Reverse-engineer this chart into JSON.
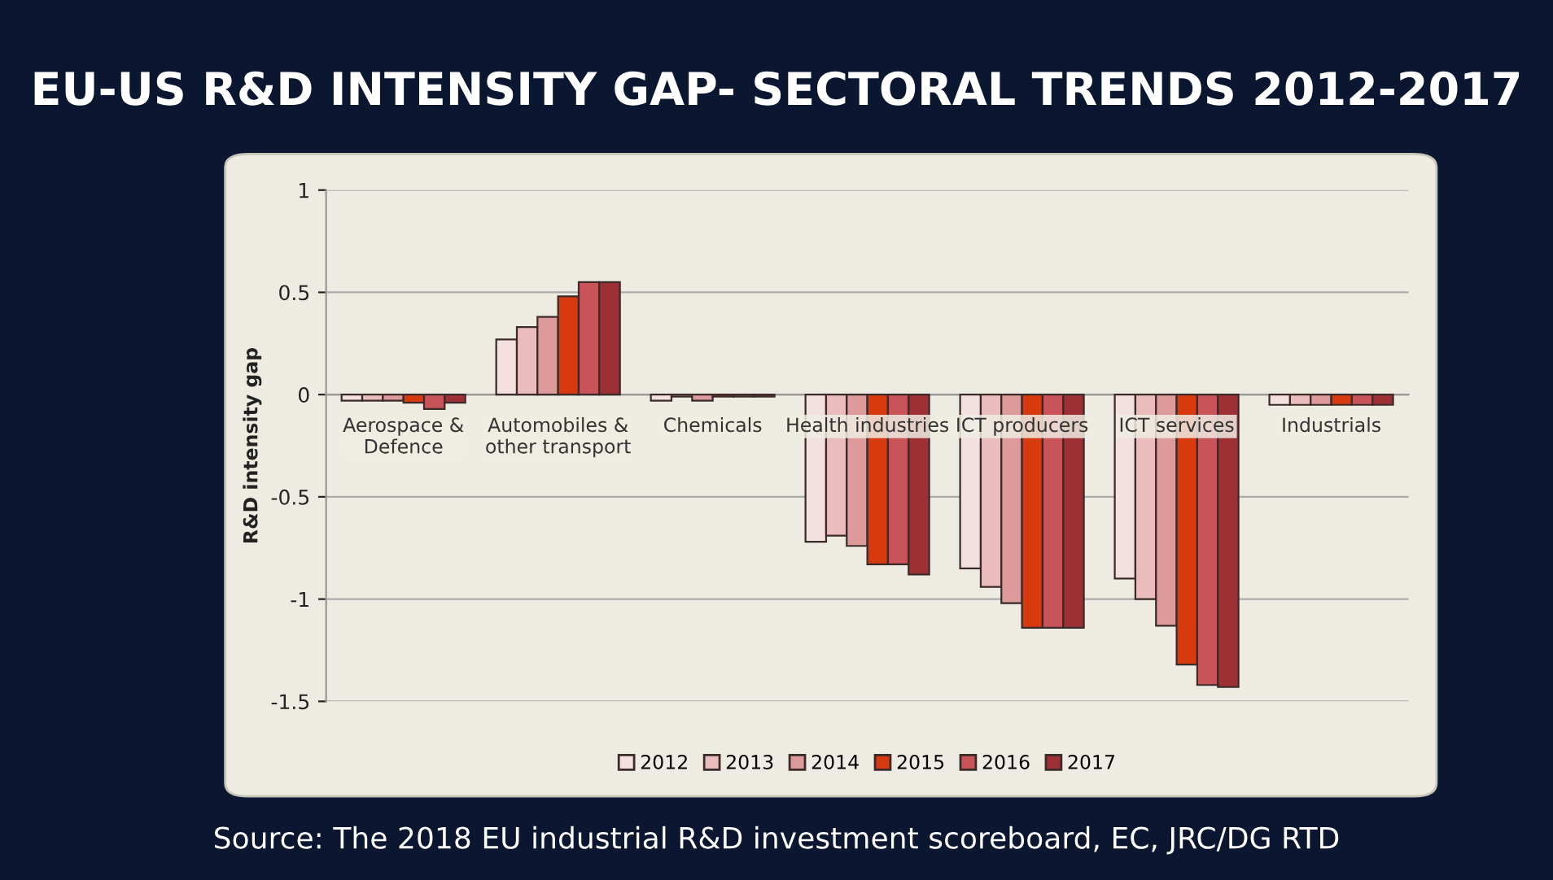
{
  "chart_data": {
    "type": "bar",
    "title": "EU-US R&D INTENSITY GAP- SECTORAL TRENDS 2012-2017",
    "ylabel": "R&D intensity gap",
    "categories": [
      "Aerospace & Defence",
      "Automobiles & other transport",
      "Chemicals",
      "Health industries",
      "ICT producers",
      "ICT services",
      "Industrials"
    ],
    "series": [
      {
        "name": "2012",
        "color": "#f5e0e0",
        "values": [
          -0.03,
          0.27,
          -0.03,
          -0.72,
          -0.85,
          -0.9,
          -0.05
        ]
      },
      {
        "name": "2013",
        "color": "#ebbcbc",
        "values": [
          -0.03,
          0.33,
          -0.01,
          -0.69,
          -0.94,
          -1.0,
          -0.05
        ]
      },
      {
        "name": "2014",
        "color": "#dd9a9a",
        "values": [
          -0.03,
          0.38,
          -0.03,
          -0.74,
          -1.02,
          -1.13,
          -0.05
        ]
      },
      {
        "name": "2015",
        "color": "#d83a10",
        "values": [
          -0.04,
          0.48,
          -0.01,
          -0.83,
          -1.14,
          -1.32,
          -0.05
        ]
      },
      {
        "name": "2016",
        "color": "#c8545a",
        "values": [
          -0.07,
          0.55,
          -0.01,
          -0.83,
          -1.14,
          -1.42,
          -0.05
        ]
      },
      {
        "name": "2017",
        "color": "#9c3035",
        "values": [
          -0.04,
          0.55,
          -0.01,
          -0.88,
          -1.14,
          -1.43,
          -0.05
        ]
      }
    ],
    "ylim": [
      -1.5,
      1
    ],
    "yticks": [
      {
        "value": -1.5,
        "label": "-1.5"
      },
      {
        "value": -1,
        "label": "-1"
      },
      {
        "value": -0.5,
        "label": "-0.5"
      },
      0,
      0.5,
      1
    ],
    "grid": "y",
    "legend": "bottom",
    "annotations": [
      "Source: The 2018 EU industrial R&D investment scoreboard, EC, JRC/DG RTD"
    ]
  }
}
